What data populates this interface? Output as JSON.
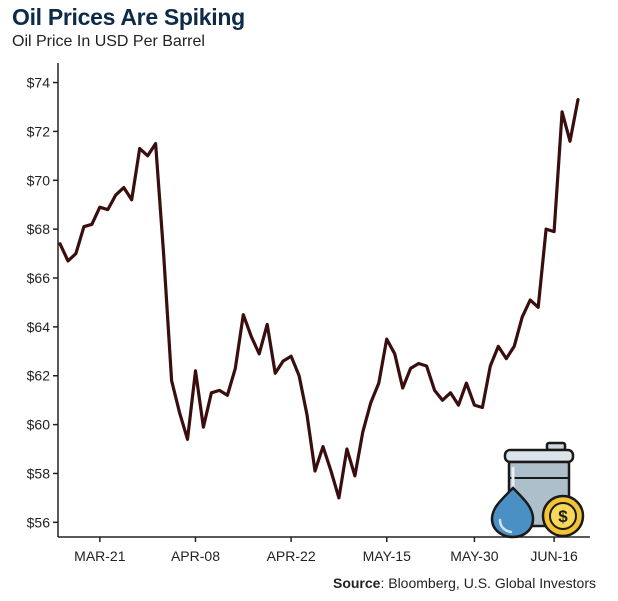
{
  "title": "Oil Prices Are Spiking",
  "subtitle": "Oil Price In USD Per Barrel",
  "source": {
    "label": "Source",
    "text": ": Bloomberg, U.S. Global Investors"
  },
  "colors": {
    "line": "#3a0e0e",
    "title": "#0e2a4a",
    "axis": "#222222"
  },
  "icon": "oil-barrel-drop-coin-icon",
  "chart_data": {
    "type": "line",
    "title": "Oil Prices Are Spiking",
    "subtitle": "Oil Price In USD Per Barrel",
    "xlabel": "",
    "ylabel": "",
    "ylim": [
      55.4,
      74.8
    ],
    "y_ticks": [
      56,
      58,
      60,
      62,
      64,
      66,
      68,
      70,
      72,
      74
    ],
    "y_tick_labels": [
      "$56",
      "$58",
      "$60",
      "$62",
      "$64",
      "$66",
      "$68",
      "$70",
      "$72",
      "$74"
    ],
    "x_tick_labels": [
      {
        "index": 5,
        "label": "MAR-21"
      },
      {
        "index": 17,
        "label": "APR-08"
      },
      {
        "index": 29,
        "label": "APR-22"
      },
      {
        "index": 41,
        "label": "MAY-15"
      },
      {
        "index": 52,
        "label": "MAY-30"
      },
      {
        "index": 62,
        "label": "JUN-16"
      }
    ],
    "grid": false,
    "series": [
      {
        "values": [
          67.4,
          66.7,
          67.0,
          68.1,
          68.2,
          68.9,
          68.8,
          69.4,
          69.7,
          69.2,
          71.3,
          71.0,
          71.5,
          67.0,
          61.8,
          60.5,
          59.4,
          62.2,
          59.9,
          61.3,
          61.4,
          61.2,
          62.3,
          64.5,
          63.6,
          62.9,
          64.1,
          62.1,
          62.6,
          62.8,
          62.0,
          60.4,
          58.1,
          59.1,
          58.1,
          57.0,
          59.0,
          57.9,
          59.7,
          60.9,
          61.7,
          63.5,
          62.9,
          61.5,
          62.3,
          62.5,
          62.4,
          61.4,
          61.0,
          61.3,
          60.8,
          61.7,
          60.8,
          60.7,
          62.4,
          63.2,
          62.7,
          63.2,
          64.4,
          65.1,
          64.8,
          68.0,
          67.9,
          72.8,
          71.6,
          73.3
        ]
      }
    ]
  }
}
